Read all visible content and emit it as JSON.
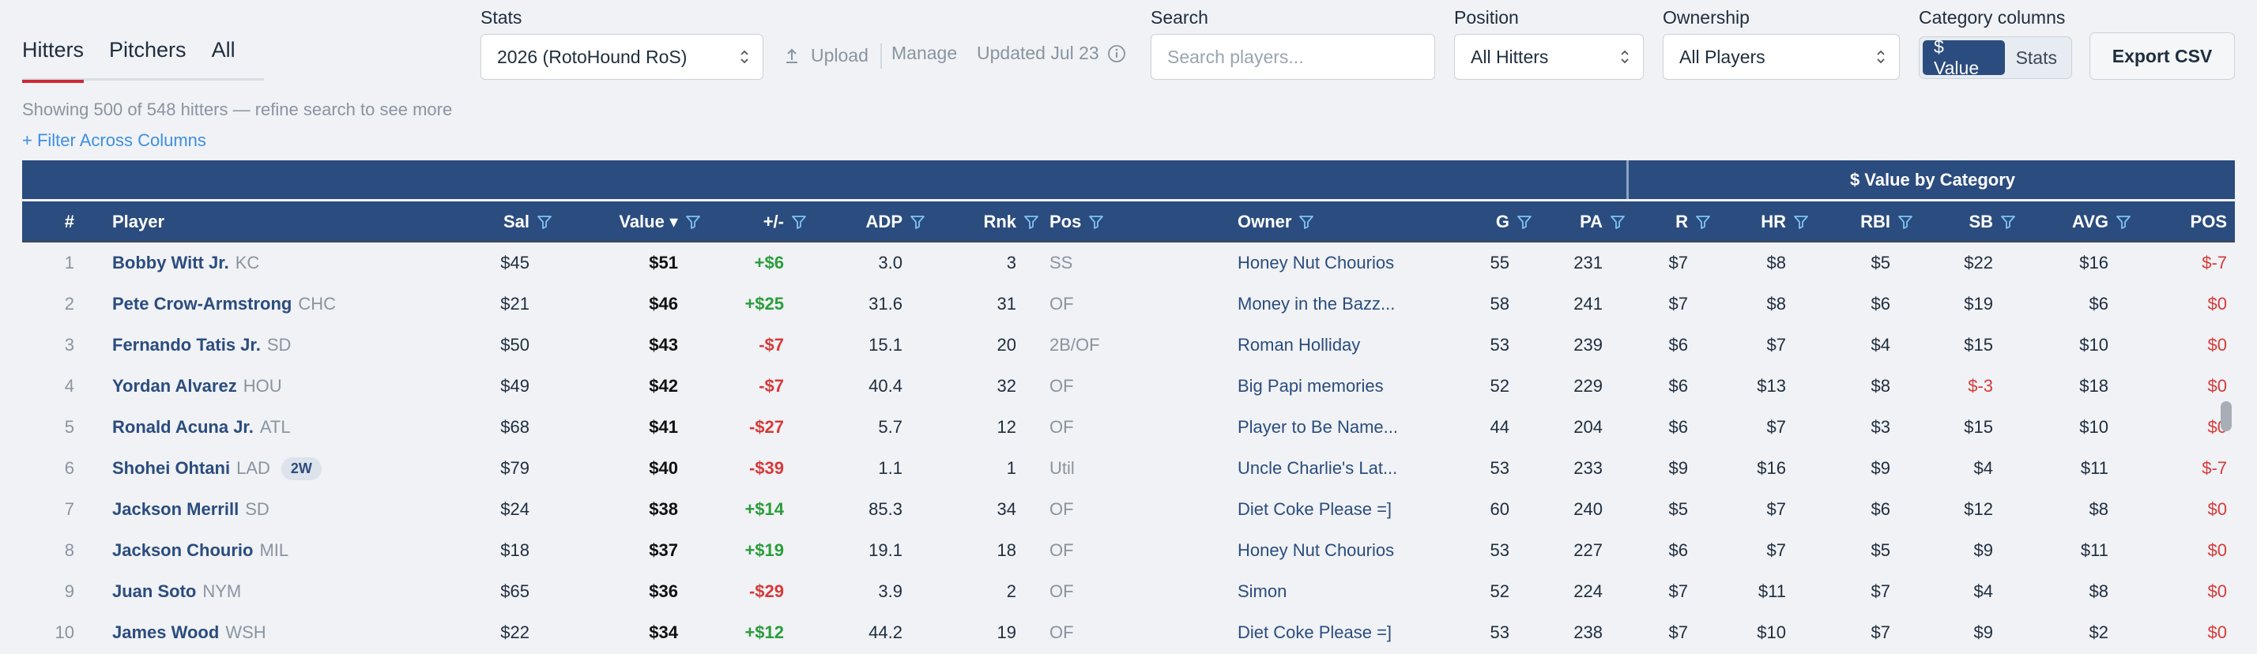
{
  "tabs": [
    "Hitters",
    "Pitchers",
    "All"
  ],
  "stats": {
    "label": "Stats",
    "value": "2026 (RotoHound RoS)"
  },
  "upload_label": "Upload",
  "manage_label": "Manage",
  "updated_label": "Updated Jul 23",
  "search": {
    "label": "Search",
    "placeholder": "Search players..."
  },
  "position": {
    "label": "Position",
    "value": "All Hitters"
  },
  "ownership": {
    "label": "Ownership",
    "value": "All Players"
  },
  "category_columns": {
    "label": "Category columns",
    "options": [
      "$ Value",
      "Stats"
    ],
    "selected": "$ Value"
  },
  "export_label": "Export CSV",
  "status_text": "Showing 500 of 548 hitters — refine search to see more",
  "filter_link": "+ Filter Across Columns",
  "group_header": "$ Value by Category",
  "columns": [
    "#",
    "Player",
    "Sal",
    "Value ▾",
    "+/-",
    "ADP",
    "Rnk",
    "Pos",
    "Owner",
    "G",
    "PA",
    "R",
    "HR",
    "RBI",
    "SB",
    "AVG",
    "POS"
  ],
  "colors": {
    "header_bg": "#2b4c7e",
    "negative": "#d63a3a",
    "positive": "#2a9d3a",
    "tab_underline": "#cc2936",
    "link": "#3f8fe0"
  },
  "rows": [
    {
      "n": "1",
      "name": "Bobby Witt Jr.",
      "team": "KC",
      "badge": "",
      "sal": "$45",
      "value": "$51",
      "pm": "+$6",
      "adp": "3.0",
      "rnk": "3",
      "pos": "SS",
      "owner": "Honey Nut Chourios",
      "g": "55",
      "pa": "231",
      "r": "$7",
      "hr": "$8",
      "rbi": "$5",
      "sb": "$22",
      "avg": "$16",
      "posv": "$-7"
    },
    {
      "n": "2",
      "name": "Pete Crow-Armstrong",
      "team": "CHC",
      "badge": "",
      "sal": "$21",
      "value": "$46",
      "pm": "+$25",
      "adp": "31.6",
      "rnk": "31",
      "pos": "OF",
      "owner": "Money in the Bazz...",
      "g": "58",
      "pa": "241",
      "r": "$7",
      "hr": "$8",
      "rbi": "$6",
      "sb": "$19",
      "avg": "$6",
      "posv": "$0"
    },
    {
      "n": "3",
      "name": "Fernando Tatis Jr.",
      "team": "SD",
      "badge": "",
      "sal": "$50",
      "value": "$43",
      "pm": "-$7",
      "adp": "15.1",
      "rnk": "20",
      "pos": "2B/OF",
      "owner": "Roman Holliday",
      "g": "53",
      "pa": "239",
      "r": "$6",
      "hr": "$7",
      "rbi": "$4",
      "sb": "$15",
      "avg": "$10",
      "posv": "$0"
    },
    {
      "n": "4",
      "name": "Yordan Alvarez",
      "team": "HOU",
      "badge": "",
      "sal": "$49",
      "value": "$42",
      "pm": "-$7",
      "adp": "40.4",
      "rnk": "32",
      "pos": "OF",
      "owner": "Big Papi memories",
      "g": "52",
      "pa": "229",
      "r": "$6",
      "hr": "$13",
      "rbi": "$8",
      "sb": "$-3",
      "avg": "$18",
      "posv": "$0"
    },
    {
      "n": "5",
      "name": "Ronald Acuna Jr.",
      "team": "ATL",
      "badge": "",
      "sal": "$68",
      "value": "$41",
      "pm": "-$27",
      "adp": "5.7",
      "rnk": "12",
      "pos": "OF",
      "owner": "Player to Be Name...",
      "g": "44",
      "pa": "204",
      "r": "$6",
      "hr": "$7",
      "rbi": "$3",
      "sb": "$15",
      "avg": "$10",
      "posv": "$0"
    },
    {
      "n": "6",
      "name": "Shohei Ohtani",
      "team": "LAD",
      "badge": "2W",
      "sal": "$79",
      "value": "$40",
      "pm": "-$39",
      "adp": "1.1",
      "rnk": "1",
      "pos": "Util",
      "owner": "Uncle Charlie's Lat...",
      "g": "53",
      "pa": "233",
      "r": "$9",
      "hr": "$16",
      "rbi": "$9",
      "sb": "$4",
      "avg": "$11",
      "posv": "$-7"
    },
    {
      "n": "7",
      "name": "Jackson Merrill",
      "team": "SD",
      "badge": "",
      "sal": "$24",
      "value": "$38",
      "pm": "+$14",
      "adp": "85.3",
      "rnk": "34",
      "pos": "OF",
      "owner": "Diet Coke Please =]",
      "g": "60",
      "pa": "240",
      "r": "$5",
      "hr": "$7",
      "rbi": "$6",
      "sb": "$12",
      "avg": "$8",
      "posv": "$0"
    },
    {
      "n": "8",
      "name": "Jackson Chourio",
      "team": "MIL",
      "badge": "",
      "sal": "$18",
      "value": "$37",
      "pm": "+$19",
      "adp": "19.1",
      "rnk": "18",
      "pos": "OF",
      "owner": "Honey Nut Chourios",
      "g": "53",
      "pa": "227",
      "r": "$6",
      "hr": "$7",
      "rbi": "$5",
      "sb": "$9",
      "avg": "$11",
      "posv": "$0"
    },
    {
      "n": "9",
      "name": "Juan Soto",
      "team": "NYM",
      "badge": "",
      "sal": "$65",
      "value": "$36",
      "pm": "-$29",
      "adp": "3.9",
      "rnk": "2",
      "pos": "OF",
      "owner": "Simon",
      "g": "52",
      "pa": "224",
      "r": "$7",
      "hr": "$11",
      "rbi": "$7",
      "sb": "$4",
      "avg": "$8",
      "posv": "$0"
    },
    {
      "n": "10",
      "name": "James Wood",
      "team": "WSH",
      "badge": "",
      "sal": "$22",
      "value": "$34",
      "pm": "+$12",
      "adp": "44.2",
      "rnk": "19",
      "pos": "OF",
      "owner": "Diet Coke Please =]",
      "g": "53",
      "pa": "238",
      "r": "$7",
      "hr": "$10",
      "rbi": "$7",
      "sb": "$9",
      "avg": "$2",
      "posv": "$0"
    }
  ]
}
